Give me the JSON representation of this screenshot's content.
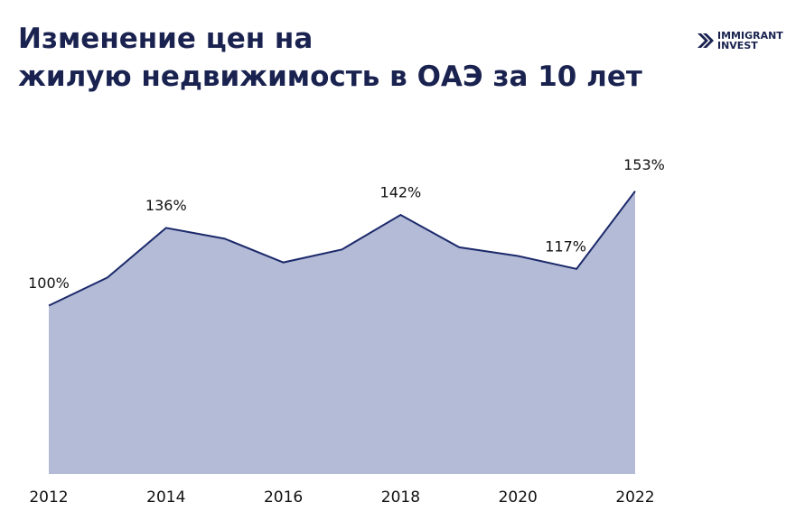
{
  "chart_data": {
    "type": "area",
    "title": [
      "Изменение цен на",
      "жилую недвижимость в ОАЭ за 10 лет"
    ],
    "logo": [
      "IMMIGRANT",
      "INVEST"
    ],
    "x": [
      2012,
      2013,
      2014,
      2015,
      2016,
      2017,
      2018,
      2019,
      2020,
      2021,
      2022
    ],
    "values": [
      100,
      113,
      136,
      131,
      120,
      126,
      142,
      127,
      123,
      117,
      153
    ],
    "value_labels": [
      "100%",
      null,
      "136%",
      null,
      null,
      null,
      "142%",
      null,
      null,
      "117%",
      "153%"
    ],
    "xlim": [
      2012,
      2022
    ],
    "xticks": [
      2012,
      2014,
      2016,
      2018,
      2020,
      2022
    ],
    "ylim": [
      22,
      160
    ],
    "color": "#1c2a6b",
    "fill": "#b4bbd6"
  }
}
